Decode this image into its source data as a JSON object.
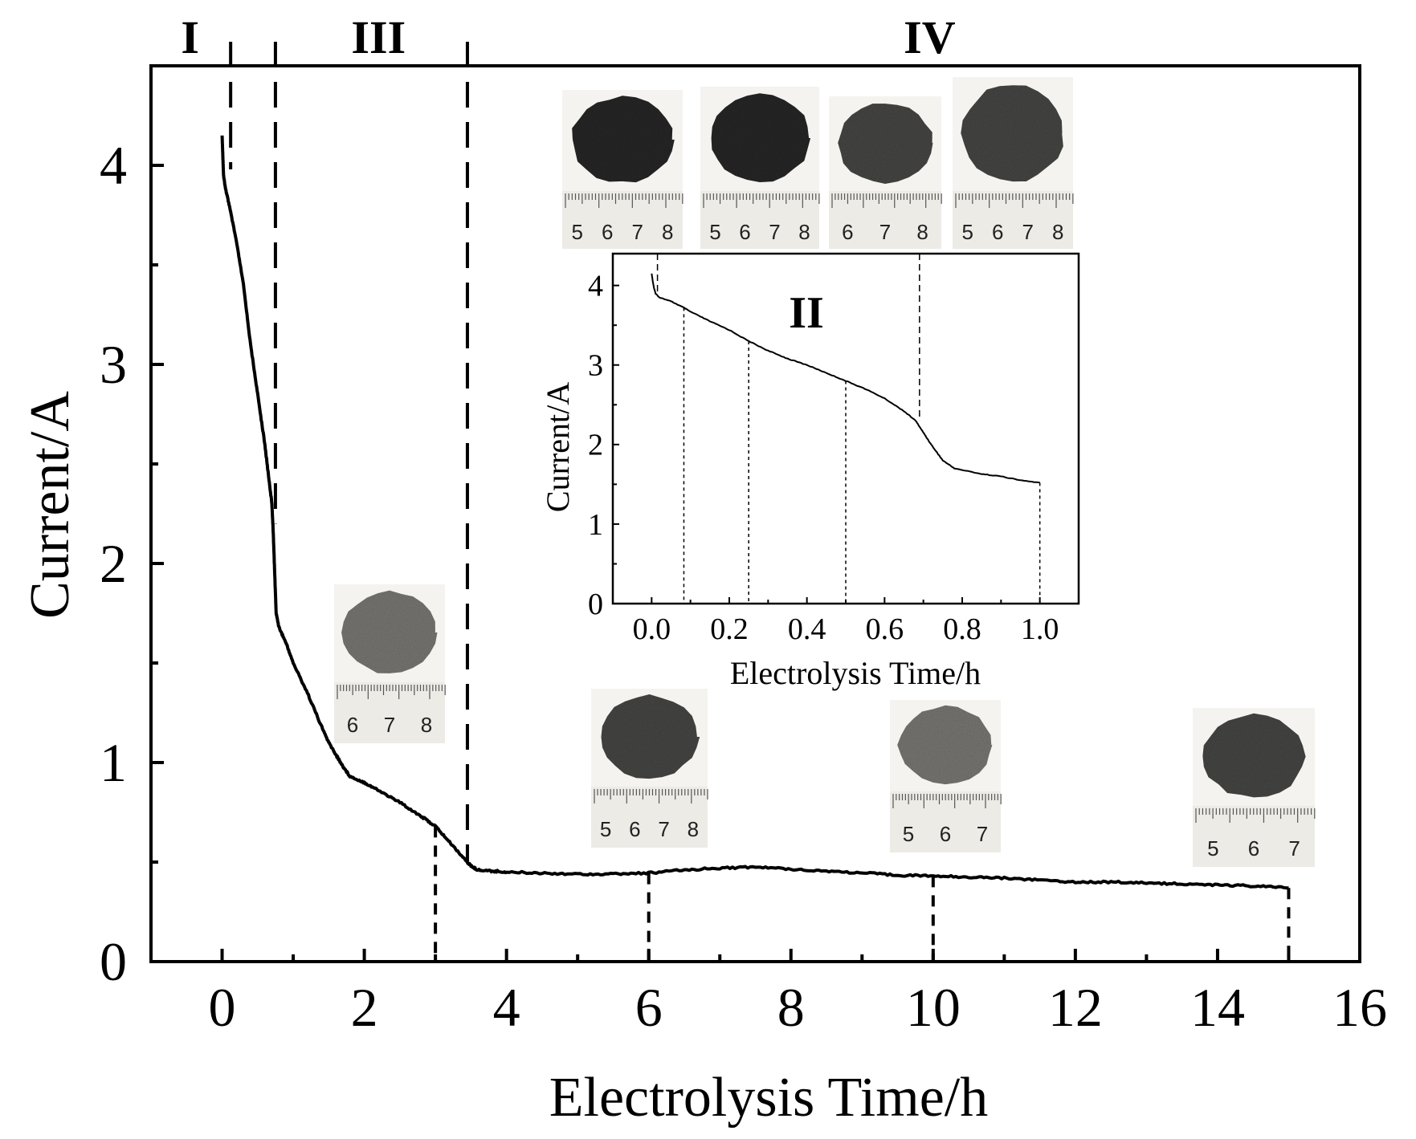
{
  "chart_data": [
    {
      "type": "line",
      "role": "main",
      "xlabel": "Electrolysis Time/h",
      "ylabel": "Current/A",
      "xlim": [
        -1,
        16
      ],
      "ylim": [
        0,
        4.5
      ],
      "xticks": [
        0,
        2,
        4,
        6,
        8,
        10,
        12,
        14,
        16
      ],
      "xtick_labels": [
        "0",
        "2",
        "4",
        "6",
        "8",
        "10",
        "12",
        "14",
        "16"
      ],
      "yticks": [
        0,
        1,
        2,
        3,
        4
      ],
      "ytick_labels": [
        "0",
        "1",
        "2",
        "3",
        "4"
      ],
      "stage_labels": [
        {
          "label": "I",
          "x": -0.45
        },
        {
          "label": "III",
          "x": 2.2
        },
        {
          "label": "IV",
          "x": 9.95
        }
      ],
      "stage_boundaries": [
        0.12,
        0.75,
        3.45
      ],
      "sample_times": [
        3,
        6,
        10,
        15
      ],
      "series": [
        {
          "name": "Current",
          "x": [
            0,
            0.01,
            0.02,
            0.05,
            0.1,
            0.2,
            0.3,
            0.4,
            0.5,
            0.6,
            0.65,
            0.7,
            0.72,
            0.74,
            0.76,
            0.8,
            0.9,
            1.0,
            1.2,
            1.4,
            1.5,
            1.6,
            1.7,
            1.8,
            2.0,
            2.2,
            2.5,
            2.8,
            3.0,
            3.2,
            3.4,
            3.5,
            3.6,
            3.8,
            4.0,
            4.5,
            5.0,
            5.5,
            6.0,
            6.5,
            7.0,
            7.5,
            8.0,
            8.5,
            9.0,
            9.5,
            10.0,
            10.5,
            11.0,
            11.5,
            12.0,
            12.5,
            13.0,
            13.5,
            14.0,
            14.5,
            15.0
          ],
          "y": [
            4.15,
            4.05,
            3.95,
            3.88,
            3.8,
            3.62,
            3.4,
            3.1,
            2.85,
            2.6,
            2.45,
            2.3,
            2.15,
            1.95,
            1.75,
            1.68,
            1.6,
            1.5,
            1.35,
            1.18,
            1.1,
            1.04,
            0.98,
            0.93,
            0.9,
            0.86,
            0.8,
            0.73,
            0.68,
            0.6,
            0.52,
            0.48,
            0.46,
            0.455,
            0.45,
            0.445,
            0.44,
            0.44,
            0.445,
            0.46,
            0.47,
            0.475,
            0.465,
            0.455,
            0.445,
            0.435,
            0.43,
            0.425,
            0.42,
            0.41,
            0.4,
            0.4,
            0.395,
            0.39,
            0.385,
            0.38,
            0.37
          ]
        }
      ]
    },
    {
      "type": "line",
      "role": "inset",
      "title": "II",
      "xlabel": "Electrolysis Time/h",
      "ylabel": "Current/A",
      "xlim": [
        -0.1,
        1.1
      ],
      "ylim": [
        0,
        4.4
      ],
      "xticks": [
        0.0,
        0.2,
        0.4,
        0.6,
        0.8,
        1.0
      ],
      "xtick_labels": [
        "0.0",
        "0.2",
        "0.4",
        "0.6",
        "0.8",
        "1.0"
      ],
      "yticks": [
        0,
        1,
        2,
        3,
        4
      ],
      "ytick_labels": [
        "0",
        "1",
        "2",
        "3",
        "4"
      ],
      "stage_boundaries": [
        0.015,
        0.69
      ],
      "sample_times": [
        0.083,
        0.25,
        0.5,
        1.0
      ],
      "series": [
        {
          "name": "Current",
          "x": [
            0,
            0.003,
            0.006,
            0.01,
            0.02,
            0.05,
            0.083,
            0.1,
            0.15,
            0.2,
            0.25,
            0.3,
            0.35,
            0.4,
            0.45,
            0.5,
            0.55,
            0.6,
            0.65,
            0.68,
            0.7,
            0.72,
            0.75,
            0.78,
            0.8,
            0.85,
            0.9,
            0.95,
            1.0
          ],
          "y": [
            4.15,
            4.05,
            3.97,
            3.9,
            3.85,
            3.8,
            3.72,
            3.67,
            3.55,
            3.44,
            3.3,
            3.18,
            3.08,
            3.0,
            2.9,
            2.8,
            2.7,
            2.58,
            2.42,
            2.3,
            2.15,
            2.0,
            1.8,
            1.7,
            1.68,
            1.63,
            1.6,
            1.55,
            1.52
          ]
        }
      ]
    }
  ],
  "photos": {
    "main": [
      {
        "id": "p3h",
        "ticks": [
          "6",
          "7",
          "8"
        ]
      },
      {
        "id": "p6h",
        "ticks": [
          "5",
          "6",
          "7",
          "8"
        ]
      },
      {
        "id": "p10h",
        "ticks": [
          "5",
          "6",
          "7"
        ]
      },
      {
        "id": "p15h",
        "ticks": [
          "5",
          "6",
          "7"
        ]
      }
    ],
    "inset": [
      {
        "id": "q1",
        "ticks": [
          "5",
          "6",
          "7",
          "8"
        ]
      },
      {
        "id": "q2",
        "ticks": [
          "5",
          "6",
          "7",
          "8"
        ]
      },
      {
        "id": "q3",
        "ticks": [
          "6",
          "7",
          "8"
        ]
      },
      {
        "id": "q4",
        "ticks": [
          "5",
          "6",
          "7",
          "8"
        ]
      }
    ]
  },
  "colors": {
    "line": "#000000",
    "sample_light": "#7d7a76",
    "sample_dark": "#2c2b2a",
    "sample_mid": "#4a4847",
    "ruler": "#ecebe6"
  }
}
